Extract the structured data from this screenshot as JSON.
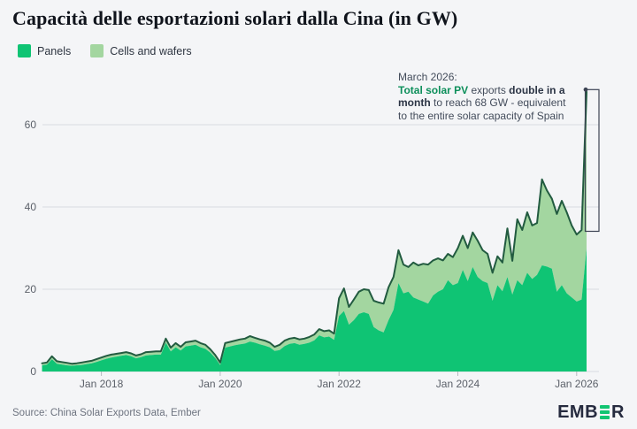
{
  "title": "Capacità delle esportazioni solari dalla Cina (in GW)",
  "legend": {
    "items": [
      {
        "label": "Panels",
        "color": "#0fc474"
      },
      {
        "label": "Cells and wafers",
        "color": "#a3d6a0"
      }
    ]
  },
  "annotation": {
    "lines": [
      [
        {
          "text": "March 2026:",
          "style": "normal"
        }
      ],
      [
        {
          "text": "Total solar PV",
          "style": "green-bold"
        },
        {
          "text": " exports ",
          "style": "normal"
        },
        {
          "text": "double in a",
          "style": "bold"
        }
      ],
      [
        {
          "text": "month",
          "style": "bold"
        },
        {
          "text": " to reach 68 GW - equivalent",
          "style": "normal"
        }
      ],
      [
        {
          "text": "to the entire solar capacity of Spain",
          "style": "normal"
        }
      ]
    ]
  },
  "source": "Source: China Solar Exports Data, Ember",
  "logo": {
    "left": "EMB",
    "right": "R",
    "bar_color": "#12c572",
    "text_color": "#262b3f"
  },
  "colors": {
    "background": "#f4f5f7",
    "panels_fill": "#0fc474",
    "cells_fill": "#a3d6a0",
    "total_line": "#225b40",
    "gridline": "#d8dbe0",
    "axis_text": "#5b6069",
    "bracket": "#3c4353",
    "annotation_green": "#0d8f5b"
  },
  "chart_data": {
    "type": "area",
    "stacked": true,
    "frequency": "monthly",
    "x_start": "2017-01",
    "x_end": "2026-03",
    "title": "Capacità delle esportazioni solari dalla Cina (in GW)",
    "ylabel": "GW",
    "ylim": [
      0,
      72
    ],
    "y_ticks": [
      0,
      20,
      40,
      60
    ],
    "x_tick_labels": [
      "Jan 2018",
      "Jan 2020",
      "Jan 2022",
      "Jan 2024",
      "Jan 2026"
    ],
    "x_tick_month_index": [
      12,
      36,
      60,
      84,
      108
    ],
    "grid": "horizontal",
    "legend_position": "top-left",
    "series": [
      {
        "name": "Panels",
        "color": "#0fc474",
        "values": [
          1.5,
          1.7,
          3.0,
          1.9,
          1.7,
          1.5,
          1.4,
          1.5,
          1.6,
          1.8,
          2.0,
          2.3,
          2.7,
          3.1,
          3.4,
          3.6,
          3.8,
          4.0,
          3.7,
          3.2,
          3.5,
          3.9,
          4.0,
          4.1,
          4.1,
          7.0,
          4.9,
          5.9,
          5.1,
          6.1,
          6.3,
          6.5,
          5.9,
          5.5,
          4.6,
          3.3,
          1.6,
          5.8,
          6.1,
          6.4,
          6.6,
          6.8,
          7.3,
          7.0,
          6.6,
          6.3,
          5.9,
          5.0,
          5.2,
          6.2,
          6.7,
          6.9,
          6.5,
          6.7,
          7.0,
          7.6,
          8.8,
          8.3,
          8.5,
          7.7,
          13.5,
          14.7,
          11.4,
          12.5,
          14.0,
          14.4,
          14.0,
          10.8,
          10.0,
          9.5,
          12.5,
          15.0,
          21.5,
          19.0,
          19.4,
          18.0,
          17.5,
          17.0,
          16.5,
          18.5,
          19.4,
          20.0,
          22.2,
          21.0,
          21.5,
          24.7,
          22.0,
          25.4,
          23.0,
          22.0,
          21.5,
          17.2,
          21.0,
          19.5,
          23.0,
          18.7,
          22.2,
          21.0,
          24.0,
          22.5,
          23.5,
          25.8,
          25.5,
          25.0,
          19.4,
          21.0,
          19.0,
          18.0,
          17.0,
          17.5,
          30.0
        ]
      },
      {
        "name": "Cells and wafers",
        "color": "#a3d6a0",
        "values": [
          0.5,
          0.5,
          0.7,
          0.6,
          0.6,
          0.6,
          0.5,
          0.5,
          0.6,
          0.6,
          0.6,
          0.7,
          0.7,
          0.7,
          0.7,
          0.7,
          0.7,
          0.7,
          0.7,
          0.7,
          0.7,
          0.8,
          0.8,
          0.8,
          0.8,
          1.0,
          0.9,
          1.0,
          0.9,
          1.0,
          1.0,
          1.0,
          1.0,
          1.0,
          0.8,
          0.7,
          0.6,
          1.1,
          1.1,
          1.1,
          1.2,
          1.2,
          1.3,
          1.2,
          1.2,
          1.2,
          1.1,
          1.0,
          1.3,
          1.3,
          1.3,
          1.3,
          1.3,
          1.3,
          1.4,
          1.4,
          1.5,
          1.5,
          1.5,
          1.5,
          4.3,
          5.5,
          4.3,
          5.0,
          5.4,
          5.6,
          5.8,
          6.4,
          6.8,
          7.0,
          8.0,
          8.0,
          8.0,
          7.0,
          6.0,
          8.5,
          8.3,
          9.2,
          9.5,
          8.5,
          8.1,
          7.0,
          6.4,
          6.8,
          8.5,
          8.3,
          8.0,
          8.4,
          8.8,
          7.5,
          7.1,
          6.8,
          7.0,
          7.0,
          11.8,
          8.2,
          14.8,
          13.4,
          14.7,
          13.0,
          12.6,
          20.9,
          18.5,
          17.0,
          18.9,
          20.5,
          19.7,
          17.5,
          16.3,
          16.9,
          38.0
        ]
      }
    ],
    "highlight": {
      "peak_month": "2026-03",
      "peak_total_value": 68,
      "bracket": true
    }
  }
}
